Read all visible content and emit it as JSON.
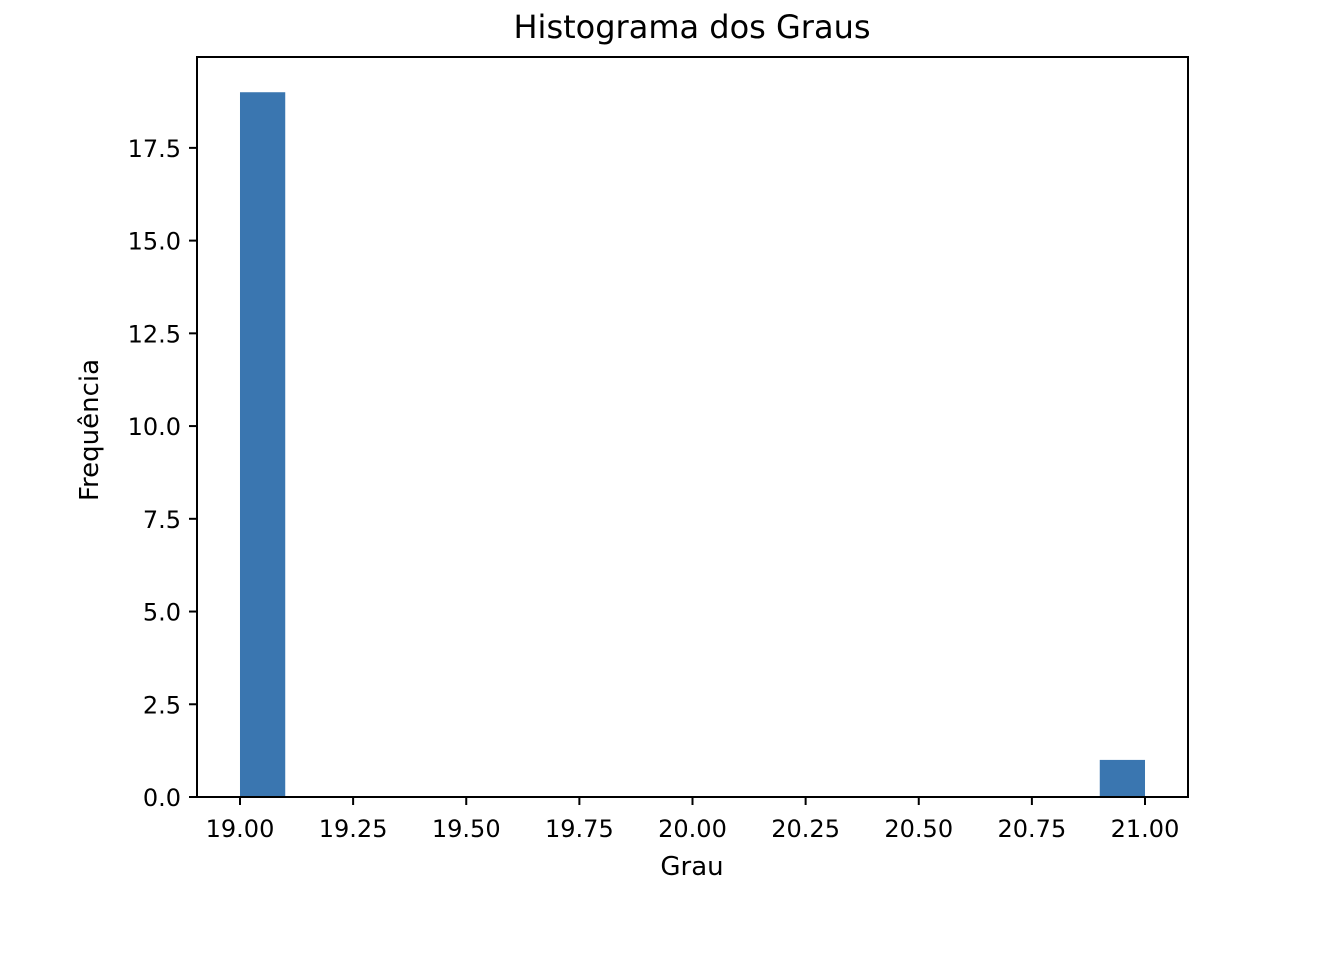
{
  "chart_data": {
    "type": "bar",
    "title": "Histograma dos Graus",
    "xlabel": "Grau",
    "ylabel": "Frequência",
    "xlim": [
      18.905,
      21.095
    ],
    "ylim": [
      0,
      19.95
    ],
    "bar_color": "#3a76b0",
    "bin_width": 0.1,
    "bins": [
      {
        "x0": 19.0,
        "x1": 19.1,
        "value": 19
      },
      {
        "x0": 20.9,
        "x1": 21.0,
        "value": 1
      }
    ],
    "xticks": [
      19.0,
      19.25,
      19.5,
      19.75,
      20.0,
      20.25,
      20.5,
      20.75,
      21.0
    ],
    "xtick_labels": [
      "19.00",
      "19.25",
      "19.50",
      "19.75",
      "20.00",
      "20.25",
      "20.50",
      "20.75",
      "21.00"
    ],
    "yticks": [
      0,
      2.5,
      5.0,
      7.5,
      10.0,
      12.5,
      15.0,
      17.5
    ],
    "ytick_labels": [
      "0.0",
      "2.5",
      "5.0",
      "7.5",
      "10.0",
      "12.5",
      "15.0",
      "17.5"
    ],
    "grid": false,
    "legend": false
  }
}
